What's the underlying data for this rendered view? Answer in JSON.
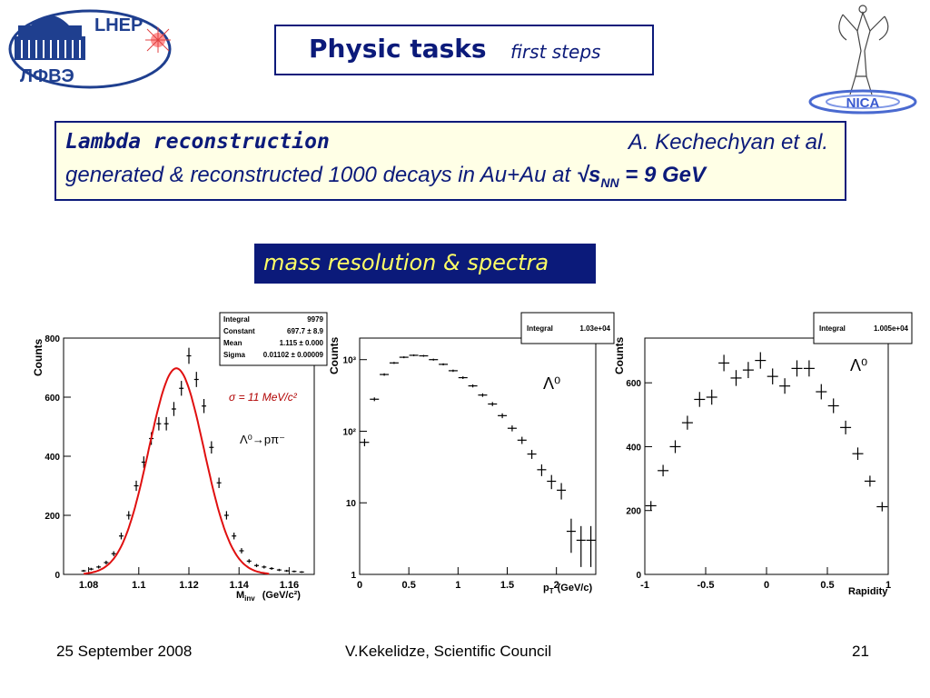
{
  "logos": {
    "left_top": "LHEP",
    "left_bottom": "ЛФВЭ",
    "right": "NICA"
  },
  "title": {
    "main": "Physic tasks",
    "sub": "first steps"
  },
  "info": {
    "heading": "Lambda reconstruction",
    "author": "A. Kechechyan et al.",
    "desc_prefix": "generated & reconstructed 1000 decays in Au+Au at ",
    "sqrt": "√",
    "s": "s",
    "nn": "NN",
    "desc_suffix": " = 9 GeV"
  },
  "banner": "mass resolution & spectra",
  "footer": {
    "date": "25 September 2008",
    "author": "V.Kekelidze, Scientific Council",
    "page": "21"
  },
  "chart_data": [
    {
      "type": "scatter",
      "ylabel": "Counts",
      "xlabel": "M",
      "xlabel_sub": "inv",
      "xlabel_unit": "(GeV/c²)",
      "xlim": [
        1.07,
        1.17
      ],
      "ylim": [
        0,
        800
      ],
      "xticks": [
        1.08,
        1.1,
        1.12,
        1.14,
        1.16
      ],
      "xtick_labels": [
        "1.08",
        "1.1",
        "1.12",
        "1.14",
        "1.16"
      ],
      "yticks": [
        0,
        200,
        400,
        600,
        800
      ],
      "ytick_labels": [
        "0",
        "200",
        "400",
        "600",
        "800"
      ],
      "stats": [
        {
          "label": "Integral",
          "value": "9979"
        },
        {
          "label": "Constant",
          "value": "697.7 ± 8.9"
        },
        {
          "label": "Mean",
          "value": "1.115 ± 0.000"
        },
        {
          "label": "Sigma",
          "value": "0.01102 ± 0.00009"
        }
      ],
      "annotation_sigma": "σ = 11 MeV/c²",
      "annotation_decay": "Λ⁰→pπ⁻",
      "x": [
        1.078,
        1.081,
        1.084,
        1.087,
        1.09,
        1.093,
        1.096,
        1.099,
        1.102,
        1.105,
        1.108,
        1.111,
        1.114,
        1.117,
        1.12,
        1.123,
        1.126,
        1.129,
        1.132,
        1.135,
        1.138,
        1.141,
        1.144,
        1.147,
        1.15,
        1.153,
        1.156,
        1.159,
        1.162,
        1.165
      ],
      "y": [
        12,
        18,
        25,
        40,
        70,
        130,
        200,
        300,
        380,
        460,
        510,
        510,
        560,
        630,
        740,
        660,
        570,
        430,
        310,
        200,
        130,
        80,
        45,
        30,
        25,
        20,
        15,
        12,
        10,
        8
      ],
      "fit": {
        "type": "gaussian",
        "constant": 697.7,
        "mean": 1.115,
        "sigma": 0.01102
      }
    },
    {
      "type": "scatter",
      "log_y": true,
      "ylabel": "Counts",
      "xlabel": "p",
      "xlabel_sub": "T",
      "xlabel_unit": "(GeV/c)",
      "xlim": [
        0,
        2.4
      ],
      "ylim": [
        1,
        2000
      ],
      "xticks": [
        0,
        0.5,
        1,
        1.5,
        2
      ],
      "xtick_labels": [
        "0",
        "0.5",
        "1",
        "1.5",
        "2"
      ],
      "yticks": [
        1,
        10,
        100,
        1000
      ],
      "ytick_labels": [
        "1",
        "10",
        "10²",
        "10³"
      ],
      "stats": [
        {
          "label": "Integral",
          "value": "1.03e+04"
        }
      ],
      "annotation": "Λ⁰",
      "x": [
        0.05,
        0.15,
        0.25,
        0.35,
        0.45,
        0.55,
        0.65,
        0.75,
        0.85,
        0.95,
        1.05,
        1.15,
        1.25,
        1.35,
        1.45,
        1.55,
        1.65,
        1.75,
        1.85,
        1.95,
        2.05,
        2.15,
        2.25,
        2.35
      ],
      "y": [
        70,
        280,
        620,
        900,
        1080,
        1150,
        1130,
        1000,
        860,
        700,
        560,
        430,
        320,
        240,
        165,
        110,
        75,
        48,
        29,
        20,
        15,
        4,
        3,
        3
      ]
    },
    {
      "type": "scatter",
      "ylabel": "Counts",
      "xlabel": "Rapidity",
      "xlim": [
        -1,
        1
      ],
      "ylim": [
        0,
        740
      ],
      "xticks": [
        -1,
        -0.5,
        0,
        0.5,
        1
      ],
      "xtick_labels": [
        "-1",
        "-0.5",
        "0",
        "0.5",
        "1"
      ],
      "yticks": [
        0,
        200,
        400,
        600
      ],
      "ytick_labels": [
        "0",
        "200",
        "400",
        "600"
      ],
      "stats": [
        {
          "label": "Integral",
          "value": "1.005e+04"
        }
      ],
      "annotation": "Λ⁰",
      "x": [
        -0.95,
        -0.85,
        -0.75,
        -0.65,
        -0.55,
        -0.45,
        -0.35,
        -0.25,
        -0.15,
        -0.05,
        0.05,
        0.15,
        0.25,
        0.35,
        0.45,
        0.55,
        0.65,
        0.75,
        0.85,
        0.95
      ],
      "y": [
        215,
        325,
        400,
        475,
        548,
        555,
        662,
        615,
        640,
        670,
        620,
        590,
        645,
        645,
        572,
        528,
        460,
        378,
        292,
        212
      ]
    }
  ]
}
